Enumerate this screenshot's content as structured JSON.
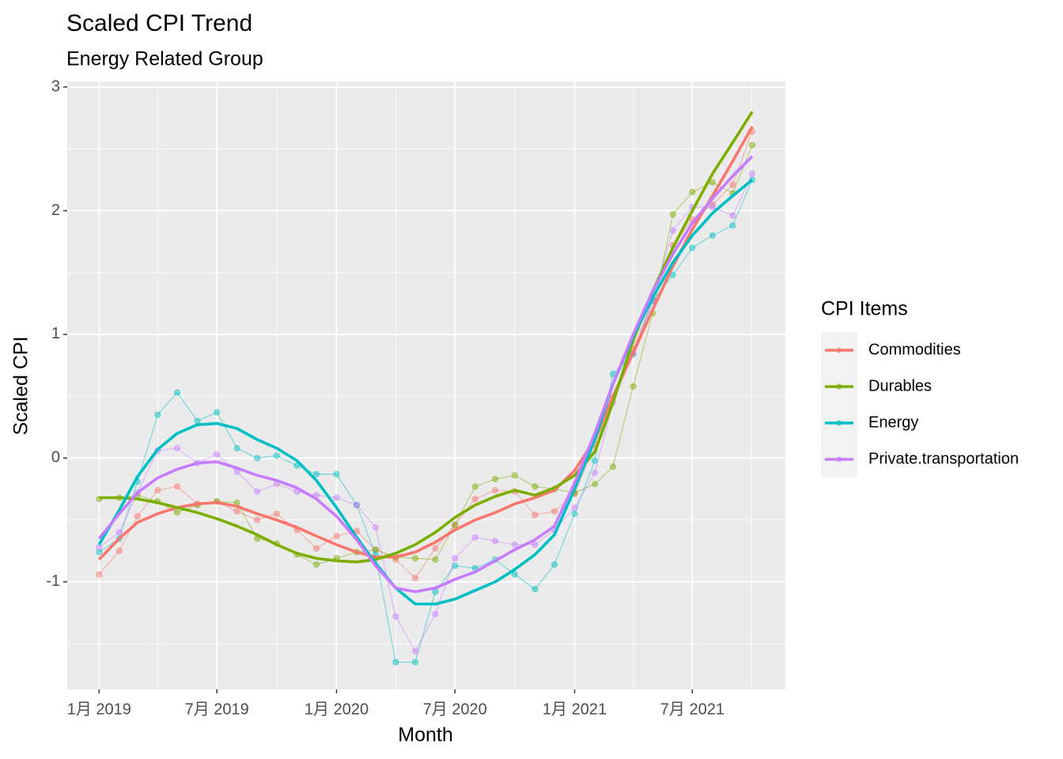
{
  "chart_data": {
    "type": "line",
    "title": "Scaled CPI Trend",
    "subtitle": "Energy Related Group",
    "x_label": "Month",
    "y_label": "Scaled CPI",
    "legend_title": "CPI Items",
    "legend": "right",
    "grid": true,
    "x": [
      "2019-01",
      "2019-02",
      "2019-03",
      "2019-04",
      "2019-05",
      "2019-06",
      "2019-07",
      "2019-08",
      "2019-09",
      "2019-10",
      "2019-11",
      "2019-12",
      "2020-01",
      "2020-02",
      "2020-03",
      "2020-04",
      "2020-05",
      "2020-06",
      "2020-07",
      "2020-08",
      "2020-09",
      "2020-10",
      "2020-11",
      "2020-12",
      "2021-01",
      "2021-02",
      "2021-03",
      "2021-04",
      "2021-05",
      "2021-06",
      "2021-07",
      "2021-08",
      "2021-09",
      "2021-10"
    ],
    "xlim": [
      "2018-11-13",
      "2021-11-21"
    ],
    "xticks": [
      {
        "value": "2019-01",
        "label": "1月 2019"
      },
      {
        "value": "2019-07",
        "label": "7月 2019"
      },
      {
        "value": "2020-01",
        "label": "1月 2020"
      },
      {
        "value": "2020-07",
        "label": "7月 2020"
      },
      {
        "value": "2021-01",
        "label": "1月 2021"
      },
      {
        "value": "2021-07",
        "label": "7月 2021"
      }
    ],
    "ylim": [
      -1.87,
      3.045
    ],
    "yticks": [
      -1,
      0,
      1,
      2,
      3
    ],
    "series": [
      {
        "name": "Commodities",
        "color": "#F8766D",
        "values": [
          -0.94,
          -0.75,
          -0.47,
          -0.26,
          -0.23,
          -0.37,
          -0.35,
          -0.43,
          -0.5,
          -0.45,
          -0.58,
          -0.73,
          -0.63,
          -0.59,
          -0.74,
          -0.82,
          -0.97,
          -0.73,
          -0.54,
          -0.33,
          -0.26,
          -0.27,
          -0.46,
          -0.43,
          -0.29,
          0.11,
          0.49,
          0.88,
          1.28,
          1.72,
          1.93,
          2.05,
          2.21,
          2.64
        ],
        "trend": [
          -0.82,
          -0.65,
          -0.52,
          -0.45,
          -0.4,
          -0.37,
          -0.36,
          -0.39,
          -0.45,
          -0.5,
          -0.56,
          -0.63,
          -0.7,
          -0.76,
          -0.8,
          -0.8,
          -0.76,
          -0.68,
          -0.58,
          -0.5,
          -0.44,
          -0.37,
          -0.32,
          -0.26,
          -0.1,
          0.15,
          0.5,
          0.85,
          1.2,
          1.55,
          1.85,
          2.12,
          2.4,
          2.68
        ]
      },
      {
        "name": "Durables",
        "color": "#7CAE00",
        "values": [
          -0.33,
          -0.32,
          -0.3,
          -0.35,
          -0.44,
          -0.38,
          -0.35,
          -0.36,
          -0.65,
          -0.69,
          -0.78,
          -0.86,
          -0.81,
          -0.76,
          -0.74,
          -0.8,
          -0.81,
          -0.82,
          -0.54,
          -0.23,
          -0.17,
          -0.14,
          -0.23,
          -0.25,
          -0.28,
          -0.21,
          -0.07,
          0.58,
          1.17,
          1.97,
          2.15,
          2.23,
          2.14,
          2.53
        ],
        "trend": [
          -0.32,
          -0.32,
          -0.33,
          -0.36,
          -0.4,
          -0.44,
          -0.49,
          -0.55,
          -0.62,
          -0.7,
          -0.77,
          -0.81,
          -0.83,
          -0.84,
          -0.82,
          -0.77,
          -0.7,
          -0.6,
          -0.48,
          -0.38,
          -0.31,
          -0.26,
          -0.3,
          -0.24,
          -0.14,
          0.05,
          0.45,
          0.95,
          1.35,
          1.7,
          2.0,
          2.3,
          2.55,
          2.8
        ]
      },
      {
        "name": "Energy",
        "color": "#00BFC4",
        "values": [
          -0.76,
          -0.65,
          -0.19,
          0.35,
          0.53,
          0.3,
          0.37,
          0.08,
          0.0,
          0.02,
          -0.06,
          -0.13,
          -0.13,
          -0.38,
          -0.78,
          -1.65,
          -1.65,
          -1.08,
          -0.87,
          -0.89,
          -0.82,
          -0.94,
          -1.06,
          -0.86,
          -0.45,
          -0.02,
          0.68,
          0.84,
          1.27,
          1.48,
          1.7,
          1.8,
          1.88,
          2.25
        ],
        "trend": [
          -0.7,
          -0.42,
          -0.15,
          0.07,
          0.2,
          0.27,
          0.28,
          0.24,
          0.15,
          0.08,
          -0.02,
          -0.18,
          -0.4,
          -0.64,
          -0.85,
          -1.05,
          -1.18,
          -1.18,
          -1.14,
          -1.07,
          -1.0,
          -0.9,
          -0.78,
          -0.62,
          -0.25,
          0.15,
          0.6,
          0.98,
          1.3,
          1.58,
          1.8,
          1.98,
          2.12,
          2.25
        ]
      },
      {
        "name": "Private.transportation",
        "color": "#C77CFF",
        "values": [
          -0.72,
          -0.6,
          -0.28,
          0.06,
          0.08,
          -0.04,
          0.03,
          -0.11,
          -0.27,
          -0.21,
          -0.27,
          -0.3,
          -0.32,
          -0.38,
          -0.56,
          -1.28,
          -1.56,
          -1.26,
          -0.81,
          -0.64,
          -0.67,
          -0.7,
          -0.7,
          -0.58,
          -0.4,
          -0.12,
          0.45,
          0.85,
          1.28,
          1.84,
          2.03,
          2.03,
          1.96,
          2.3
        ],
        "trend": [
          -0.65,
          -0.45,
          -0.28,
          -0.16,
          -0.09,
          -0.04,
          -0.03,
          -0.08,
          -0.14,
          -0.18,
          -0.24,
          -0.33,
          -0.47,
          -0.66,
          -0.87,
          -1.05,
          -1.08,
          -1.05,
          -0.98,
          -0.92,
          -0.83,
          -0.74,
          -0.66,
          -0.55,
          -0.2,
          0.2,
          0.6,
          1.0,
          1.35,
          1.65,
          1.9,
          2.1,
          2.28,
          2.44
        ]
      }
    ]
  }
}
